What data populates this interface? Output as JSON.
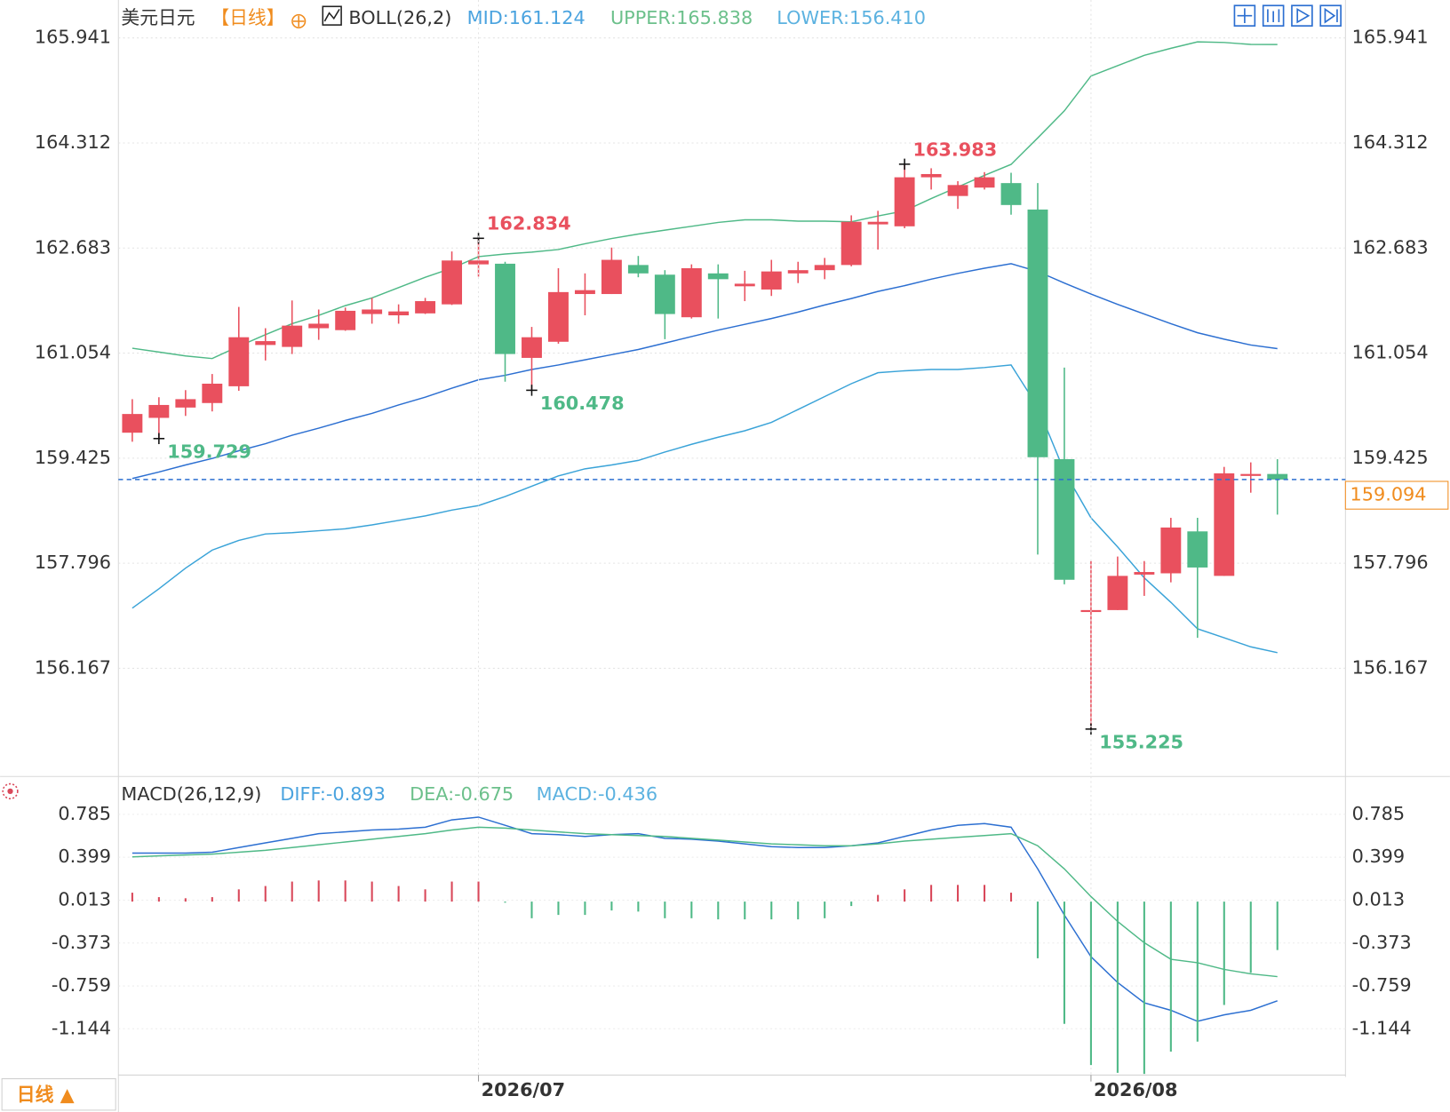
{
  "chart_data": [
    {
      "type": "candlestick",
      "title": "美元日元",
      "period": "【日线】",
      "indicator": "BOLL(26,2)",
      "candles": {
        "open": [
          159.82,
          160.05,
          160.21,
          160.28,
          160.54,
          161.18,
          161.15,
          161.44,
          161.41,
          161.66,
          161.64,
          161.67,
          161.81,
          162.43,
          162.44,
          160.98,
          161.23,
          161.97,
          161.97,
          162.42,
          162.27,
          161.61,
          162.29,
          162.09,
          162.04,
          162.29,
          162.34,
          162.42,
          163.05,
          163.02,
          163.78,
          163.49,
          163.62,
          163.69,
          163.28,
          159.41,
          157.04,
          157.07,
          157.62,
          157.64,
          158.29,
          157.6,
          159.15,
          159.18
        ],
        "high": [
          160.34,
          160.37,
          160.48,
          160.73,
          161.77,
          161.44,
          161.87,
          161.73,
          161.76,
          161.91,
          161.81,
          161.91,
          162.63,
          162.834,
          162.47,
          161.46,
          162.37,
          162.29,
          162.69,
          162.56,
          162.34,
          162.43,
          162.43,
          162.33,
          162.5,
          162.47,
          162.53,
          163.19,
          163.26,
          163.983,
          163.92,
          163.72,
          163.86,
          163.85,
          163.69,
          160.83,
          157.83,
          157.9,
          157.83,
          158.5,
          158.5,
          159.29,
          159.36,
          159.41
        ],
        "low": [
          159.68,
          159.729,
          160.08,
          160.15,
          160.47,
          160.94,
          161.04,
          161.26,
          161.4,
          161.51,
          161.51,
          161.66,
          161.8,
          162.24,
          160.61,
          160.478,
          161.2,
          161.64,
          161.97,
          162.23,
          161.27,
          161.59,
          161.59,
          161.86,
          161.94,
          162.14,
          162.2,
          162.4,
          162.66,
          162.99,
          163.59,
          163.29,
          163.59,
          163.2,
          157.93,
          157.47,
          155.225,
          157.07,
          157.29,
          157.5,
          156.64,
          157.6,
          158.89,
          158.55
        ],
        "close": [
          160.11,
          160.25,
          160.34,
          160.58,
          161.3,
          161.24,
          161.48,
          161.51,
          161.71,
          161.73,
          161.7,
          161.86,
          162.49,
          162.49,
          161.04,
          161.3,
          162.0,
          162.03,
          162.5,
          162.29,
          161.66,
          162.37,
          162.2,
          162.13,
          162.32,
          162.34,
          162.42,
          163.09,
          163.09,
          163.78,
          163.83,
          163.66,
          163.78,
          163.35,
          159.44,
          157.54,
          157.07,
          157.6,
          157.66,
          158.35,
          157.73,
          159.19,
          159.18,
          159.094
        ],
        "up_color": "#e9505e",
        "down_color": "#4fb987"
      },
      "series": [
        {
          "name": "MID:161.124",
          "color": "#2c6fd1",
          "label_color": "#4aa3df",
          "values": [
            159.11,
            159.21,
            159.32,
            159.42,
            159.54,
            159.65,
            159.78,
            159.89,
            160.01,
            160.12,
            160.25,
            160.37,
            160.51,
            160.64,
            160.71,
            160.8,
            160.87,
            160.95,
            161.03,
            161.11,
            161.21,
            161.31,
            161.41,
            161.5,
            161.59,
            161.69,
            161.8,
            161.9,
            162.01,
            162.1,
            162.2,
            162.29,
            162.37,
            162.44,
            162.32,
            162.14,
            161.97,
            161.81,
            161.66,
            161.51,
            161.37,
            161.27,
            161.18,
            161.124
          ]
        },
        {
          "name": "UPPER:165.838",
          "color": "#4fb987",
          "label_color": "#6cc08b",
          "values": [
            161.13,
            161.07,
            161.01,
            160.97,
            161.16,
            161.34,
            161.51,
            161.64,
            161.79,
            161.91,
            162.07,
            162.23,
            162.37,
            162.55,
            162.59,
            162.62,
            162.66,
            162.75,
            162.83,
            162.9,
            162.96,
            163.02,
            163.08,
            163.12,
            163.12,
            163.1,
            163.1,
            163.09,
            163.18,
            163.26,
            163.45,
            163.63,
            163.81,
            163.98,
            164.39,
            164.81,
            165.35,
            165.51,
            165.67,
            165.78,
            165.88,
            165.87,
            165.84,
            165.838
          ]
        },
        {
          "name": "LOWER:156.410",
          "color": "#3aa3d8",
          "label_color": "#5cb2e0",
          "values": [
            157.1,
            157.4,
            157.72,
            158.0,
            158.15,
            158.25,
            158.27,
            158.3,
            158.33,
            158.39,
            158.46,
            158.53,
            158.62,
            158.69,
            158.83,
            158.99,
            159.15,
            159.26,
            159.32,
            159.39,
            159.52,
            159.64,
            159.75,
            159.85,
            159.98,
            160.18,
            160.38,
            160.58,
            160.75,
            160.78,
            160.8,
            160.8,
            160.83,
            160.87,
            160.22,
            159.22,
            158.5,
            158.05,
            157.57,
            157.19,
            156.78,
            156.64,
            156.5,
            156.41
          ]
        }
      ],
      "annotations": [
        159.729,
        162.834,
        160.478,
        163.983,
        155.225
      ],
      "last_price_color": "#f08c1e",
      "ylim": [
        154.519,
        166.457
      ],
      "yticks": [
        165.941,
        164.312,
        162.683,
        161.054,
        159.425,
        157.796,
        156.167
      ],
      "grid": true
    },
    {
      "type": "macd",
      "title": "MACD(26,12,9)",
      "categories": [
        null,
        null,
        null,
        null,
        null,
        null,
        null,
        null,
        null,
        null,
        null,
        null,
        null,
        "2026/07",
        null,
        null,
        null,
        null,
        null,
        null,
        null,
        null,
        null,
        null,
        null,
        null,
        null,
        null,
        null,
        null,
        null,
        null,
        null,
        null,
        null,
        null,
        "2026/08",
        null,
        null,
        null,
        null,
        null,
        null,
        null
      ],
      "series": [
        {
          "name": "DIFF:-0.893",
          "type": "line",
          "color": "#2c6fd1",
          "label_color": "#4aa3df",
          "values": [
            0.436,
            0.436,
            0.436,
            0.444,
            0.486,
            0.528,
            0.569,
            0.611,
            0.627,
            0.644,
            0.652,
            0.669,
            0.735,
            0.76,
            0.686,
            0.611,
            0.602,
            0.586,
            0.602,
            0.611,
            0.569,
            0.561,
            0.544,
            0.519,
            0.494,
            0.486,
            0.486,
            0.502,
            0.528,
            0.586,
            0.644,
            0.686,
            0.702,
            0.669,
            0.294,
            -0.121,
            -0.496,
            -0.728,
            -0.911,
            -0.978,
            -1.077,
            -1.019,
            -0.978,
            -0.893
          ]
        },
        {
          "name": "DEA:-0.675",
          "type": "line",
          "color": "#4fb987",
          "label_color": "#6cc08b",
          "values": [
            0.402,
            0.411,
            0.419,
            0.427,
            0.444,
            0.461,
            0.486,
            0.511,
            0.536,
            0.561,
            0.586,
            0.611,
            0.644,
            0.669,
            0.661,
            0.644,
            0.627,
            0.611,
            0.602,
            0.594,
            0.586,
            0.569,
            0.553,
            0.536,
            0.519,
            0.511,
            0.502,
            0.502,
            0.519,
            0.544,
            0.561,
            0.578,
            0.594,
            0.611,
            0.502,
            0.294,
            0.045,
            -0.179,
            -0.37,
            -0.519,
            -0.55,
            -0.61,
            -0.65,
            -0.675
          ]
        },
        {
          "name": "MACD:-0.436",
          "type": "bar",
          "color": "#4fb987",
          "up_color": "#d9485a",
          "label_color": "#5cb2e0",
          "values": [
            0.08,
            0.04,
            0.03,
            0.04,
            0.11,
            0.14,
            0.18,
            0.19,
            0.19,
            0.18,
            0.14,
            0.11,
            0.18,
            0.18,
            -0.01,
            -0.15,
            -0.12,
            -0.12,
            -0.08,
            -0.09,
            -0.15,
            -0.15,
            -0.16,
            -0.16,
            -0.16,
            -0.16,
            -0.15,
            -0.04,
            0.06,
            0.11,
            0.15,
            0.15,
            0.15,
            0.08,
            -0.51,
            -1.1,
            -1.47,
            -1.54,
            -1.55,
            -1.35,
            -1.26,
            -0.93,
            -0.64,
            -0.436
          ]
        }
      ],
      "ylim": [
        -1.552,
        1.084
      ],
      "yticks": [
        0.785,
        0.399,
        0.013,
        -0.373,
        -0.759,
        -1.144
      ],
      "grid": true
    }
  ],
  "footer": {
    "period": "日线 ▲"
  }
}
